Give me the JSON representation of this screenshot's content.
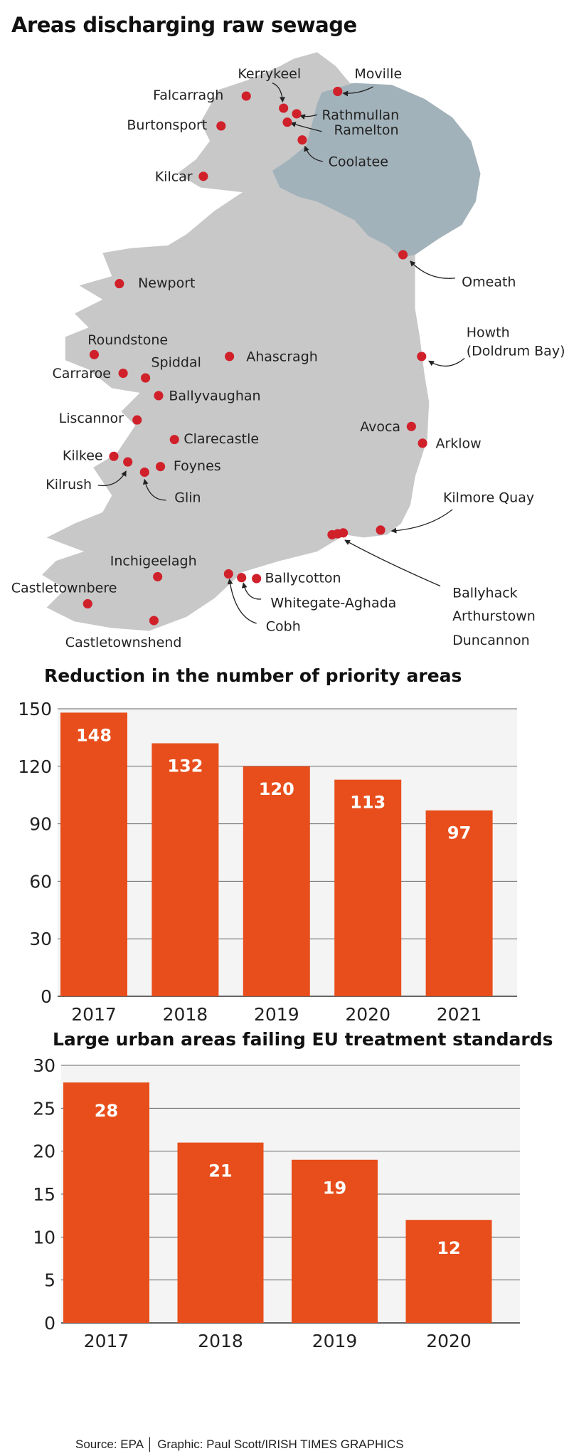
{
  "map": {
    "title": "Areas discharging raw sewage",
    "colors": {
      "republic": "#c8c8c8",
      "northern_ireland": "#a2b2ba",
      "dot": "#d0202a"
    },
    "locations": [
      {
        "name": "Moville"
      },
      {
        "name": "Kerrykeel"
      },
      {
        "name": "Falcarragh"
      },
      {
        "name": "Rathmullan"
      },
      {
        "name": "Ramelton"
      },
      {
        "name": "Burtonsport"
      },
      {
        "name": "Coolatee"
      },
      {
        "name": "Kilcar"
      },
      {
        "name": "Omeath"
      },
      {
        "name": "Newport"
      },
      {
        "name": "Howth"
      },
      {
        "name": "(Doldrum Bay)"
      },
      {
        "name": "Roundstone"
      },
      {
        "name": "Ahascragh"
      },
      {
        "name": "Carraroe"
      },
      {
        "name": "Spiddal"
      },
      {
        "name": "Ballyvaughan"
      },
      {
        "name": "Liscannor"
      },
      {
        "name": "Avoca"
      },
      {
        "name": "Arklow"
      },
      {
        "name": "Clarecastle"
      },
      {
        "name": "Kilkee"
      },
      {
        "name": "Foynes"
      },
      {
        "name": "Kilrush"
      },
      {
        "name": "Glin"
      },
      {
        "name": "Kilmore Quay"
      },
      {
        "name": "Inchigeelagh"
      },
      {
        "name": "Ballycotton"
      },
      {
        "name": "Castletownbere"
      },
      {
        "name": "Whitegate-Aghada"
      },
      {
        "name": "Cobh"
      },
      {
        "name": "Ballyhack"
      },
      {
        "name": "Arthurstown"
      },
      {
        "name": "Duncannon"
      },
      {
        "name": "Castletownshend"
      }
    ]
  },
  "chart_data": [
    {
      "type": "bar",
      "title": "Reduction in the number of priority areas",
      "categories": [
        "2017",
        "2018",
        "2019",
        "2020",
        "2021"
      ],
      "values": [
        148,
        132,
        120,
        113,
        97
      ],
      "labels": [
        "148",
        "132",
        "120",
        "113",
        "97"
      ],
      "yticks": [
        "0",
        "30",
        "60",
        "90",
        "120",
        "150"
      ],
      "ylim": [
        0,
        150
      ],
      "xlabel": "",
      "ylabel": "",
      "grid": true,
      "bar_color": "#e84e1b"
    },
    {
      "type": "bar",
      "title": "Large urban areas failing EU treatment standards",
      "categories": [
        "2017",
        "2018",
        "2019",
        "2020"
      ],
      "values": [
        28,
        21,
        19,
        12
      ],
      "labels": [
        "28",
        "21",
        "19",
        "12"
      ],
      "yticks": [
        "0",
        "5",
        "10",
        "15",
        "20",
        "25",
        "30"
      ],
      "ylim": [
        0,
        30
      ],
      "xlabel": "",
      "ylabel": "",
      "grid": true,
      "bar_color": "#e84e1b"
    }
  ],
  "footer": {
    "source": "Source: EPA  │  Graphic: Paul Scott/IRISH TIMES GRAPHICS"
  }
}
